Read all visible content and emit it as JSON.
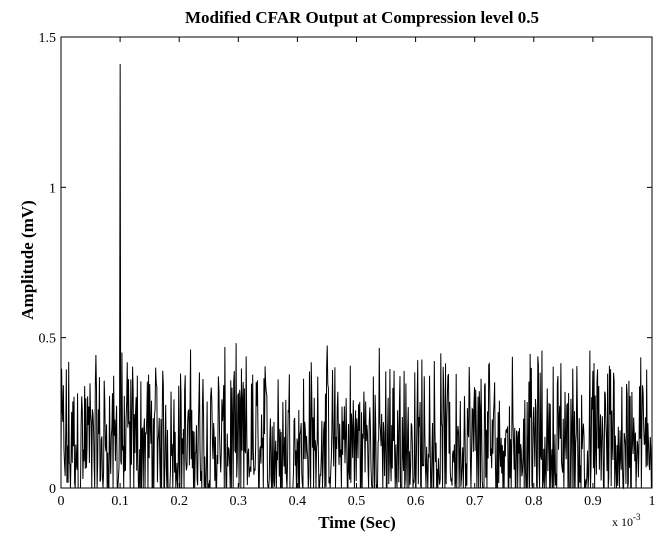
{
  "chart_data": {
    "type": "line",
    "title": "Modified CFAR Output at Compression level 0.5",
    "xlabel": "Time (Sec)",
    "ylabel": "Amplitude (mV)",
    "x_multiplier_label": "x 10",
    "x_multiplier_exponent": "-3",
    "xlim": [
      0,
      1
    ],
    "ylim": [
      0,
      1.5
    ],
    "xticks": [
      0,
      0.1,
      0.2,
      0.3,
      0.4,
      0.5,
      0.6,
      0.7,
      0.8,
      0.9,
      1
    ],
    "xtick_labels": [
      "0",
      "0.1",
      "0.2",
      "0.3",
      "0.4",
      "0.5",
      "0.6",
      "0.7",
      "0.8",
      "0.9",
      "1"
    ],
    "yticks": [
      0,
      0.5,
      1,
      1.5
    ],
    "ytick_labels": [
      "0",
      "0.5",
      "1",
      "1.5"
    ],
    "grid": false,
    "series": [
      {
        "color": "#000000",
        "n_points": 1000,
        "noise_range": [
          0,
          0.55
        ],
        "peak": {
          "x": 0.1,
          "y": 1.41
        }
      }
    ]
  }
}
